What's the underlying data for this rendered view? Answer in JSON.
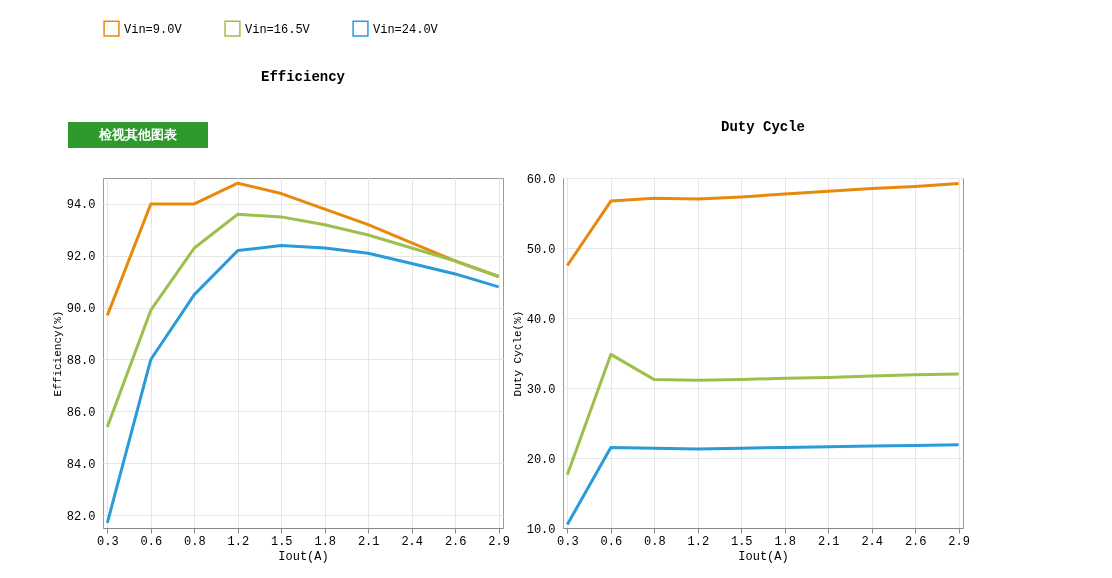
{
  "chart_data": [
    {
      "type": "line",
      "title": "Efficiency",
      "xlabel": "Iout(A)",
      "ylabel": "Efficiency(%)",
      "categories": [
        "0.3",
        "0.6",
        "0.8",
        "1.2",
        "1.5",
        "1.8",
        "2.1",
        "2.4",
        "2.6",
        "2.9"
      ],
      "series": [
        {
          "name": "Vin=9.0V",
          "color": "#e8890c",
          "values": [
            89.7,
            94.0,
            94.0,
            94.8,
            94.4,
            93.8,
            93.2,
            92.5,
            91.8,
            91.2
          ]
        },
        {
          "name": "Vin=16.5V",
          "color": "#9dbf4c",
          "values": [
            85.4,
            89.9,
            92.3,
            93.6,
            93.5,
            93.2,
            92.8,
            92.3,
            91.8,
            91.2
          ]
        },
        {
          "name": "Vin=24.0V",
          "color": "#2a9bd8",
          "values": [
            81.7,
            88.0,
            90.5,
            92.2,
            92.4,
            92.3,
            92.1,
            91.7,
            91.3,
            90.8
          ]
        }
      ],
      "ylim": [
        81.5,
        95.0
      ],
      "yticks": [
        {
          "value": 82,
          "label": "82.0"
        },
        {
          "value": 84,
          "label": "84.0"
        },
        {
          "value": 86,
          "label": "86.0"
        },
        {
          "value": 88,
          "label": "88.0"
        },
        {
          "value": 90,
          "label": "90.0"
        },
        {
          "value": 92,
          "label": "92.0"
        },
        {
          "value": 94,
          "label": "94.0"
        }
      ],
      "grid": true,
      "legend": "top",
      "line_style": "solid",
      "marker": "none",
      "annotations": [
        "检视其他图表"
      ]
    },
    {
      "type": "line",
      "title": "Duty Cycle",
      "xlabel": "Iout(A)",
      "ylabel": "Duty Cycle(%)",
      "categories": [
        "0.3",
        "0.6",
        "0.8",
        "1.2",
        "1.5",
        "1.8",
        "2.1",
        "2.4",
        "2.6",
        "2.9"
      ],
      "series": [
        {
          "name": "Vin=9.0V",
          "color": "#e8890c",
          "values": [
            47.5,
            56.7,
            57.1,
            57.0,
            57.3,
            57.7,
            58.1,
            58.5,
            58.8,
            59.2
          ]
        },
        {
          "name": "Vin=16.5V",
          "color": "#9dbf4c",
          "values": [
            17.6,
            34.8,
            31.2,
            31.1,
            31.2,
            31.4,
            31.5,
            31.7,
            31.9,
            32.0
          ]
        },
        {
          "name": "Vin=24.0V",
          "color": "#2a9bd8",
          "values": [
            10.5,
            21.5,
            21.4,
            21.3,
            21.4,
            21.5,
            21.6,
            21.7,
            21.8,
            21.9
          ]
        }
      ],
      "ylim": [
        10,
        60
      ],
      "yticks": [
        {
          "value": 10,
          "label": "10.0"
        },
        {
          "value": 20,
          "label": "20.0"
        },
        {
          "value": 30,
          "label": "30.0"
        },
        {
          "value": 40,
          "label": "40.0"
        },
        {
          "value": 50,
          "label": "50.0"
        },
        {
          "value": 60,
          "label": "60.0"
        }
      ],
      "grid": true,
      "legend": false,
      "line_style": "solid",
      "marker": "none"
    }
  ]
}
